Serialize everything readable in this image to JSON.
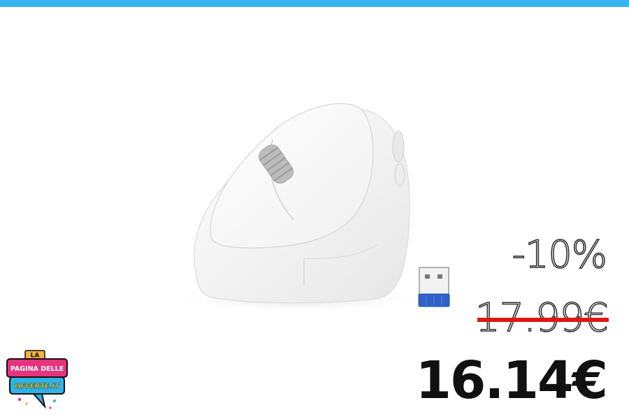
{
  "header": {
    "bar_color": "#39b3f1"
  },
  "product": {
    "image": "wireless-vertical-mouse-white-with-usb-receiver"
  },
  "pricing": {
    "discount": "-10%",
    "old_price": "17.99€",
    "new_price": "16.14€",
    "strike_color": "#e01616"
  },
  "brand": {
    "logo_text_line1": "LA",
    "logo_text_line2": "PAGINA DELLE",
    "logo_text_line3": "OFFERTE.IT"
  }
}
